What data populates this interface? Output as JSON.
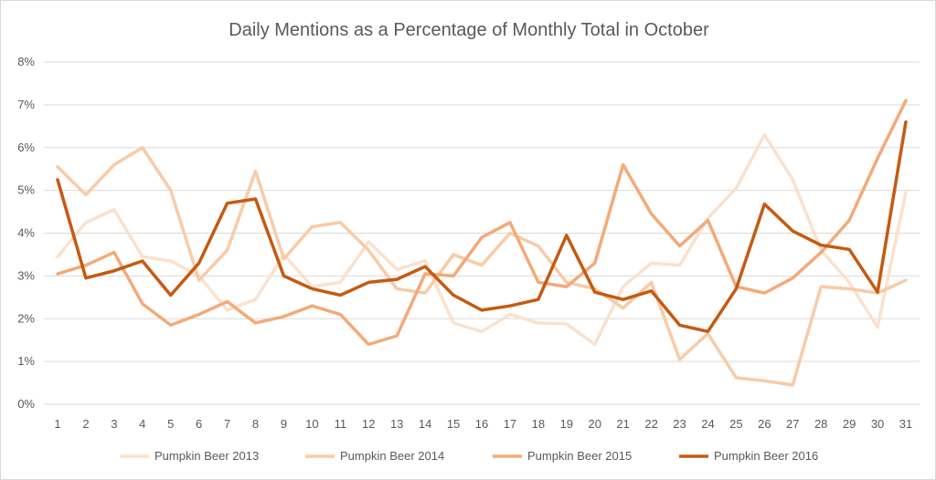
{
  "chart_data": {
    "type": "line",
    "title": "Daily Mentions as a Percentage of Monthly Total in October",
    "xlabel": "",
    "ylabel": "",
    "x": [
      1,
      2,
      3,
      4,
      5,
      6,
      7,
      8,
      9,
      10,
      11,
      12,
      13,
      14,
      15,
      16,
      17,
      18,
      19,
      20,
      21,
      22,
      23,
      24,
      25,
      26,
      27,
      28,
      29,
      30,
      31
    ],
    "ylim": [
      0,
      8
    ],
    "yticks": [
      "0%",
      "1%",
      "2%",
      "3%",
      "4%",
      "5%",
      "6%",
      "7%",
      "8%"
    ],
    "grid": true,
    "legend_position": "bottom",
    "series": [
      {
        "name": "Pumpkin Beer 2013",
        "color": "#fbe1cd",
        "values": [
          3.45,
          4.25,
          4.55,
          3.45,
          3.35,
          3.0,
          2.2,
          2.45,
          3.5,
          2.75,
          2.85,
          3.8,
          3.15,
          3.35,
          1.9,
          1.7,
          2.1,
          1.9,
          1.88,
          1.4,
          2.75,
          3.3,
          3.25,
          4.35,
          5.05,
          6.3,
          5.25,
          3.6,
          2.85,
          1.8,
          4.95
        ]
      },
      {
        "name": "Pumpkin Beer 2014",
        "color": "#f8cba7",
        "values": [
          5.55,
          4.9,
          5.6,
          6.0,
          5.0,
          2.9,
          3.6,
          5.45,
          3.4,
          4.15,
          4.25,
          3.6,
          2.7,
          2.6,
          3.5,
          3.25,
          4.0,
          3.7,
          2.85,
          2.7,
          2.25,
          2.85,
          1.05,
          1.65,
          0.62,
          0.55,
          0.45,
          2.75,
          2.7,
          2.6,
          2.9
        ]
      },
      {
        "name": "Pumpkin Beer 2015",
        "color": "#f3aa79",
        "values": [
          3.05,
          3.25,
          3.55,
          2.35,
          1.85,
          2.1,
          2.4,
          1.9,
          2.05,
          2.3,
          2.1,
          1.4,
          1.6,
          3.05,
          3.0,
          3.9,
          4.25,
          2.85,
          2.75,
          3.3,
          5.6,
          4.45,
          3.7,
          4.3,
          2.75,
          2.6,
          2.95,
          3.55,
          4.3,
          5.75,
          7.1
        ]
      },
      {
        "name": "Pumpkin Beer 2016",
        "color": "#c55a11",
        "values": [
          5.25,
          2.95,
          3.12,
          3.35,
          2.55,
          3.3,
          4.7,
          4.8,
          3.0,
          2.7,
          2.55,
          2.85,
          2.92,
          3.22,
          2.55,
          2.2,
          2.3,
          2.45,
          3.95,
          2.62,
          2.45,
          2.65,
          1.85,
          1.7,
          2.7,
          4.68,
          4.05,
          3.72,
          3.62,
          2.62,
          6.6
        ]
      }
    ]
  }
}
